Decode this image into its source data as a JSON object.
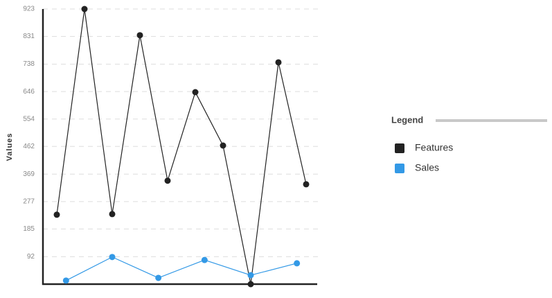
{
  "chart_data": {
    "type": "line",
    "y_label": "Values",
    "legend_title": "Legend",
    "series": [
      {
        "name": "Features",
        "color": "#222222",
        "values": [
          233,
          923,
          235,
          835,
          347,
          644,
          465,
          0,
          744,
          335
        ]
      },
      {
        "name": "Sales",
        "color": "#3399e6",
        "values": [
          12,
          91,
          21,
          81,
          30,
          70
        ]
      }
    ],
    "ylim": [
      0,
      923
    ],
    "yticks": [
      92,
      185,
      277,
      369,
      462,
      554,
      646,
      738,
      831,
      923
    ],
    "grid": true,
    "legend": "right"
  }
}
